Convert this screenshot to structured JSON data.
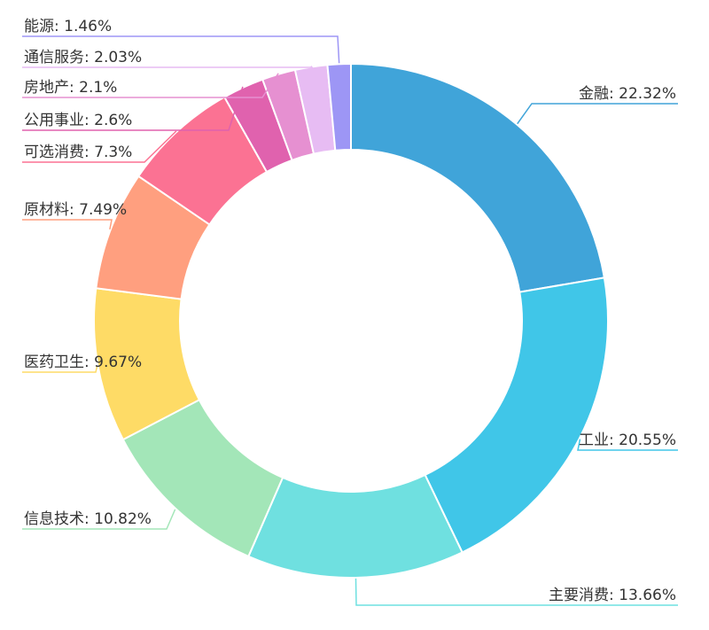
{
  "chart_data": {
    "type": "pie",
    "variant": "donut",
    "title": "",
    "legend": "none",
    "label_position": "outside",
    "slices": [
      {
        "label": "金融",
        "value": 22.32,
        "display": "金融: 22.32%",
        "color": "#40a4d9"
      },
      {
        "label": "工业",
        "value": 20.55,
        "display": "工业: 20.55%",
        "color": "#40c6e8"
      },
      {
        "label": "主要消费",
        "value": 13.66,
        "display": "主要消费: 13.66%",
        "color": "#6fe0e0"
      },
      {
        "label": "信息技术",
        "value": 10.82,
        "display": "信息技术: 10.82%",
        "color": "#a3e6b8"
      },
      {
        "label": "医药卫生",
        "value": 9.67,
        "display": "医药卫生: 9.67%",
        "color": "#fedb66"
      },
      {
        "label": "原材料",
        "value": 7.49,
        "display": "原材料: 7.49%",
        "color": "#ff9f7f"
      },
      {
        "label": "可选消费",
        "value": 7.3,
        "display": "可选消费: 7.3%",
        "color": "#fb7293"
      },
      {
        "label": "公用事业",
        "value": 2.6,
        "display": "公用事业: 2.6%",
        "color": "#e062ae"
      },
      {
        "label": "房地产",
        "value": 2.1,
        "display": "房地产: 2.1%",
        "color": "#e690d1"
      },
      {
        "label": "通信服务",
        "value": 2.03,
        "display": "通信服务: 2.03%",
        "color": "#e7bcf3"
      },
      {
        "label": "能源",
        "value": 1.46,
        "display": "能源: 1.46%",
        "color": "#9d96f5"
      }
    ]
  }
}
